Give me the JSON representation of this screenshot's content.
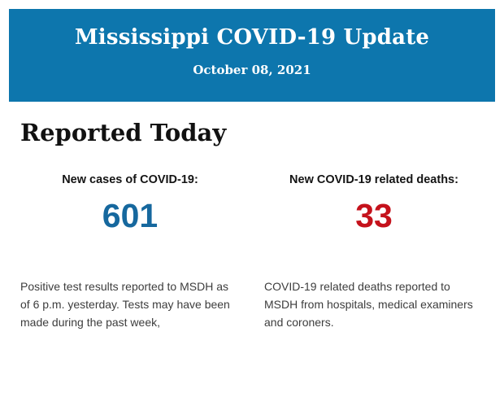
{
  "header": {
    "title": "Mississippi COVID-19 Update",
    "date": "October 08, 2021",
    "background_color": "#0d76ad",
    "text_color": "#ffffff"
  },
  "section": {
    "title": "Reported Today"
  },
  "stats": [
    {
      "label": "New cases of COVID-19:",
      "value": "601",
      "value_color": "#16689e",
      "description": "Positive test results reported to MSDH as of 6 p.m. yesterday. Tests may have been made during the past week,"
    },
    {
      "label": "New COVID-19 related deaths:",
      "value": "33",
      "value_color": "#c5121c",
      "description": "COVID-19 related deaths reported to MSDH from hospitals, medical examiners and coroners."
    }
  ]
}
